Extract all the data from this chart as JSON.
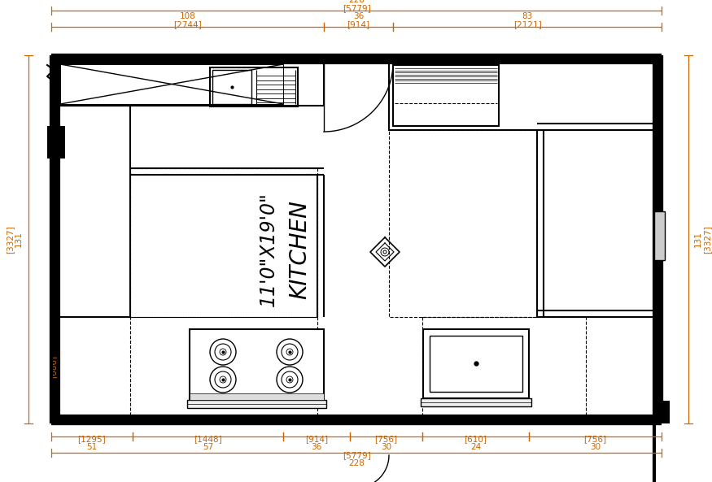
{
  "bg_color": "#ffffff",
  "wall_color": "#000000",
  "dim_color": "#cc6600",
  "room_label": "KITCHEN",
  "room_size": "11'0\"X19'0\"",
  "fig_width": 8.75,
  "fig_height": 5.93,
  "dpi": 100
}
